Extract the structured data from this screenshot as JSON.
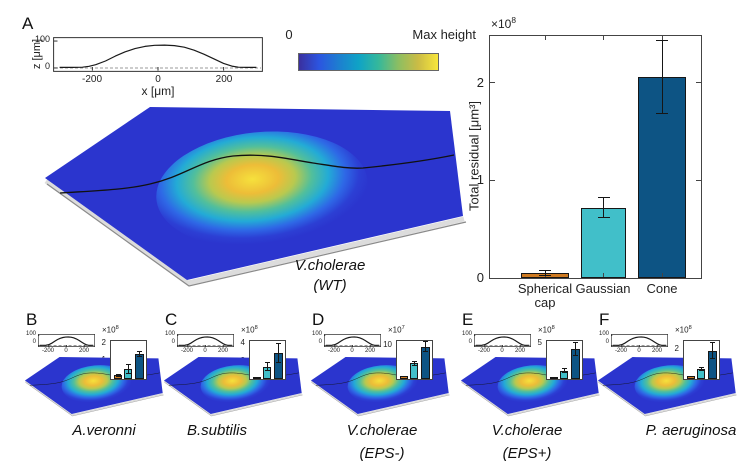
{
  "colors": {
    "bar_colors": [
      "#CE7A21",
      "#41BFC9",
      "#0D5484"
    ],
    "plane_blue": "#2B35CE",
    "colormap": [
      "#3A2F9E",
      "#2C55E0",
      "#1D7ED0",
      "#0FA3C6",
      "#35B89B",
      "#8CBE62",
      "#CBBC45",
      "#F8E63C"
    ],
    "dome_gradient": [
      {
        "o": 0,
        "c": "#F6E13C"
      },
      {
        "o": 0.22,
        "c": "#EDBD38"
      },
      {
        "o": 0.36,
        "c": "#B9C94F"
      },
      {
        "o": 0.5,
        "c": "#52BF9B"
      },
      {
        "o": 0.64,
        "c": "#23ABD6"
      },
      {
        "o": 0.78,
        "c": "#2E68E6"
      },
      {
        "o": 0.9,
        "c": "#2C3FD4"
      },
      {
        "o": 1,
        "c": "#2B35CE"
      }
    ]
  },
  "figure": {
    "panel_a": {
      "letter": "A",
      "inset": {
        "ylabel": "z [μm]",
        "xlabel": "x [μm]"
      },
      "colorbar": {
        "min_label": "0",
        "max_label": "Max height"
      },
      "chart": {
        "ylabel": "Total residual [μm³]",
        "exp_base": "×10",
        "exp": "8"
      },
      "surface_label_line1": "V.cholerae",
      "surface_label_line2": "(WT)"
    },
    "inset_ticks": {
      "y100": "100",
      "y0": "0",
      "xm200": "-200",
      "x0": "0",
      "x200": "200"
    },
    "small_panels": [
      {
        "letter": "B",
        "species": "A.veronni",
        "species2": "",
        "exp_base": "×10",
        "exp": "8"
      },
      {
        "letter": "C",
        "species": "B.subtilis",
        "species2": "",
        "exp_base": "×10",
        "exp": "8"
      },
      {
        "letter": "D",
        "species": "V.cholerae",
        "species2": "(EPS-)",
        "exp_base": "×10",
        "exp": "7"
      },
      {
        "letter": "E",
        "species": "V.cholerae",
        "species2": "(EPS+)",
        "exp_base": "×10",
        "exp": "8"
      },
      {
        "letter": "F",
        "species": "P. aeruginosa",
        "species2": "",
        "exp_base": "×10",
        "exp": "8"
      }
    ]
  },
  "chart_data": [
    {
      "id": "cross-section-A",
      "type": "line",
      "panel": "A",
      "xlabel": "x [μm]",
      "ylabel": "z [μm]",
      "xlim": [
        -320,
        320
      ],
      "ylim": [
        -15,
        115
      ],
      "xticks": [
        -200,
        0,
        200
      ],
      "yticks": [
        0,
        100
      ],
      "x": [
        -300,
        -260,
        -230,
        -210,
        -190,
        -160,
        -130,
        -100,
        -70,
        -40,
        -10,
        20,
        50,
        80,
        110,
        140,
        170,
        200,
        225,
        245,
        270,
        300
      ],
      "y": [
        2,
        2,
        3,
        6,
        12,
        26,
        44,
        60,
        72,
        80,
        84,
        85,
        83,
        77,
        66,
        51,
        34,
        17,
        7,
        3,
        2,
        2
      ],
      "zero_line": "dashed"
    },
    {
      "id": "residual-A",
      "type": "bar",
      "panel": "A",
      "ylabel": "Total residual [μm³]",
      "unit_exponent": 8,
      "categories": [
        "Spherical cap",
        "Gaussian",
        "Cone"
      ],
      "values": [
        0.05,
        0.72,
        2.06
      ],
      "errors": [
        0.025,
        0.1,
        0.37
      ],
      "yticks": [
        0,
        1,
        2
      ],
      "ylim": [
        0,
        2.48
      ]
    },
    {
      "id": "residual-B",
      "type": "bar",
      "panel": "B",
      "species": "A.veronni",
      "unit_exponent": 8,
      "categories": [
        "Spherical cap",
        "Gaussian",
        "Cone"
      ],
      "values": [
        0.22,
        0.55,
        1.4
      ],
      "errors": [
        0.06,
        0.25,
        0.15
      ],
      "yticks": [
        2,
        1,
        0
      ],
      "ylim": [
        0,
        2.15
      ]
    },
    {
      "id": "residual-C",
      "type": "bar",
      "panel": "C",
      "species": "B.subtilis",
      "unit_exponent": 8,
      "categories": [
        "Spherical cap",
        "Gaussian",
        "Cone"
      ],
      "values": [
        0.15,
        1.4,
        3.0
      ],
      "errors": [
        0,
        0.45,
        1.1
      ],
      "yticks": [
        4,
        2
      ],
      "ylim": [
        0,
        4.35
      ]
    },
    {
      "id": "residual-D",
      "type": "bar",
      "panel": "D",
      "species": "V.cholerae (EPS-)",
      "unit_exponent": 7,
      "categories": [
        "Spherical cap",
        "Gaussian",
        "Cone"
      ],
      "values": [
        0.9,
        4.8,
        9.8
      ],
      "errors": [
        0,
        0.6,
        1.5
      ],
      "yticks": [
        10,
        5
      ],
      "ylim": [
        0,
        11.6
      ]
    },
    {
      "id": "residual-E",
      "type": "bar",
      "panel": "E",
      "species": "V.cholerae (EPS+)",
      "unit_exponent": 8,
      "categories": [
        "Spherical cap",
        "Gaussian",
        "Cone"
      ],
      "values": [
        0.1,
        1.2,
        4.3
      ],
      "errors": [
        0,
        0.25,
        0.9
      ],
      "yticks": [
        5
      ],
      "ylim": [
        0,
        5.4
      ]
    },
    {
      "id": "residual-F",
      "type": "bar",
      "panel": "F",
      "species": "P. aeruginosa",
      "unit_exponent": 8,
      "categories": [
        "Spherical cap",
        "Gaussian",
        "Cone"
      ],
      "values": [
        0.22,
        0.7,
        1.95
      ],
      "errors": [
        0,
        0.12,
        0.55
      ],
      "yticks": [
        2,
        1
      ],
      "ylim": [
        0,
        2.6
      ]
    }
  ]
}
